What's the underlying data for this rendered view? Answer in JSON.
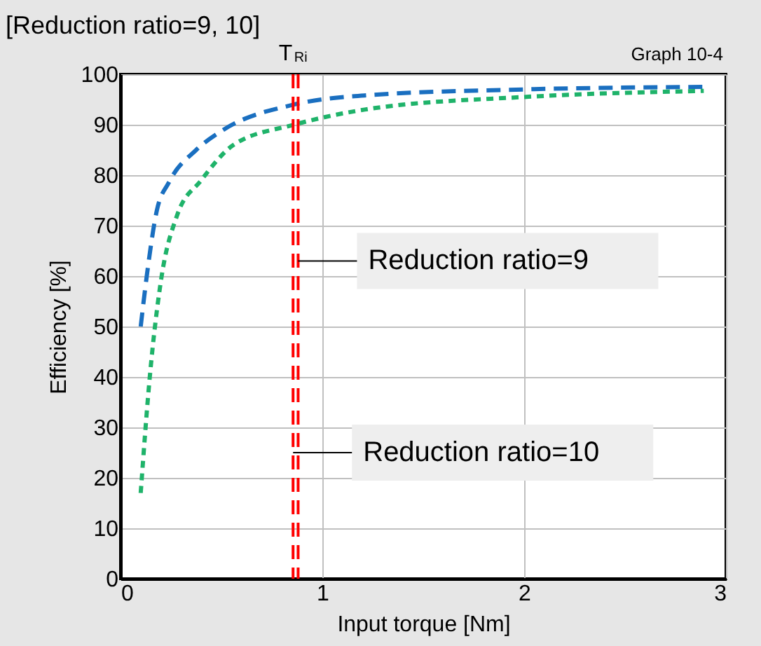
{
  "chart_data": {
    "type": "line",
    "title": "[Reduction ratio=9, 10]",
    "xlabel": "Input torque [Nm]",
    "ylabel": "Efficiency [%]",
    "annotations": [
      "Graph 10-4",
      "T$_{Ri}$",
      {
        "text": "Reduction ratio=9",
        "x": 0.88,
        "y": 63
      },
      {
        "text": "Reduction ratio=10",
        "x": 0.855,
        "y": 25
      }
    ],
    "series": [
      {
        "color": "#1a6fc0",
        "line_style": "dashed",
        "x": [
          0.1,
          0.13,
          0.18,
          0.24,
          0.375,
          0.51,
          0.86,
          1.21,
          2.0,
          2.89
        ],
        "values": [
          50,
          60,
          73,
          78.6,
          85,
          89,
          94,
          95.8,
          97,
          97.5
        ]
      },
      {
        "color": "#1fb36a",
        "line_style": "dotted",
        "x": [
          0.1,
          0.145,
          0.2,
          0.28,
          0.4,
          0.56,
          0.86,
          1.21,
          2.0,
          2.89
        ],
        "values": [
          17,
          40,
          59,
          72,
          79,
          86,
          90,
          93,
          95.5,
          96.7
        ]
      }
    ],
    "ref_lines": [
      {
        "axis": "x",
        "value": 0.855,
        "color": "#ff0000",
        "line_style": "dashed"
      },
      {
        "axis": "x",
        "value": 0.88,
        "color": "#ff0000",
        "line_style": "dashed"
      }
    ],
    "xlim": [
      0,
      3
    ],
    "xticks": [
      0,
      1,
      2,
      3
    ],
    "ylim": [
      0,
      100
    ],
    "yticks": [
      0,
      10,
      20,
      30,
      40,
      50,
      60,
      70,
      80,
      90,
      100
    ],
    "grid": true,
    "marker": "none"
  }
}
